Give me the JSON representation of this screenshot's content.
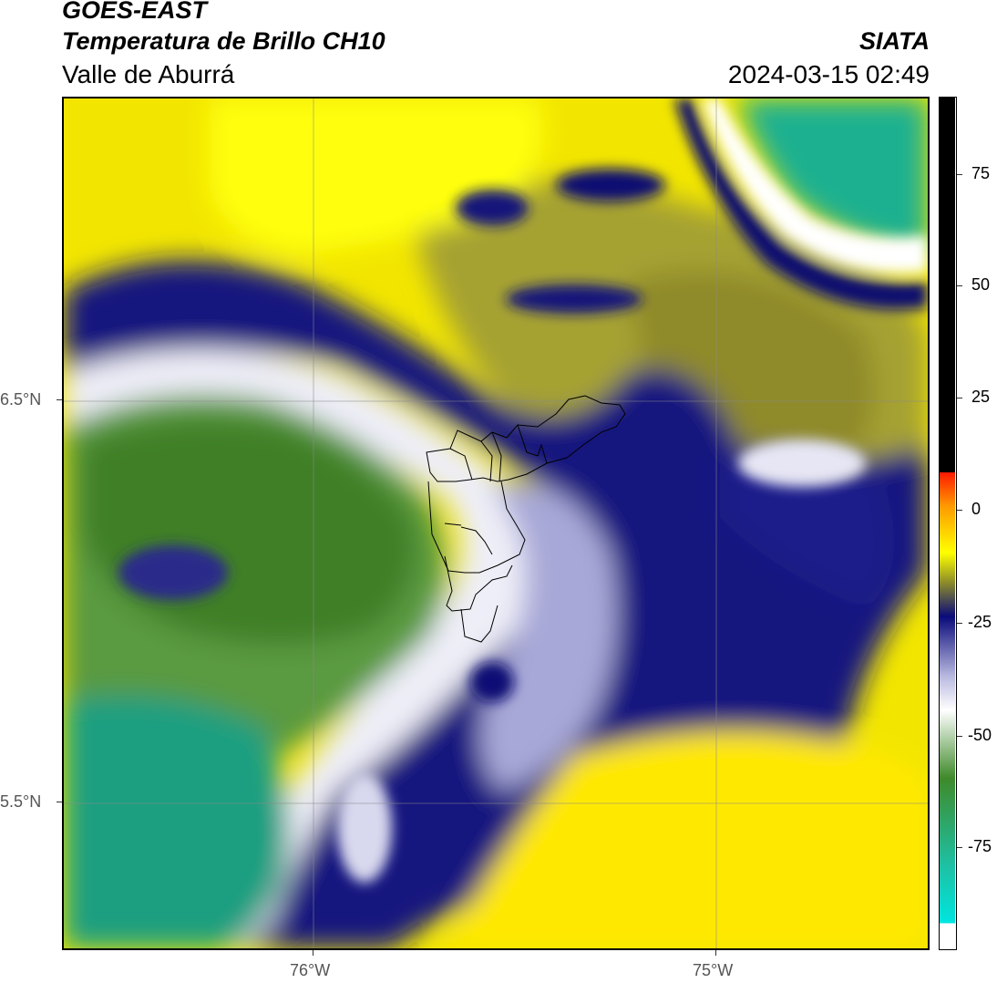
{
  "header": {
    "satellite": "GOES-EAST",
    "product": "Temperatura de Brillo CH10",
    "region": "Valle de Aburrá",
    "organization": "SIATA",
    "datetime": "2024-03-15 02:49"
  },
  "map": {
    "lat_labels": [
      "6.5°N",
      "5.5°N"
    ],
    "lon_labels": [
      "76°W",
      "75°W"
    ],
    "gridlines": true
  },
  "colorbar": {
    "tick_labels": [
      "75",
      "50",
      "25",
      "0",
      "-25",
      "-50",
      "-75"
    ],
    "colors": {
      "top": "#000000",
      "red": "#ff1a00",
      "orange": "#ff9900",
      "yellow": "#ffff00",
      "olive": "#8c8c2a",
      "navy": "#0a0a7a",
      "lavender": "#b8b8e0",
      "white": "#ffffff",
      "green": "#3f8a2a",
      "teal": "#1fbfa0",
      "cyan": "#00e5e0"
    }
  }
}
